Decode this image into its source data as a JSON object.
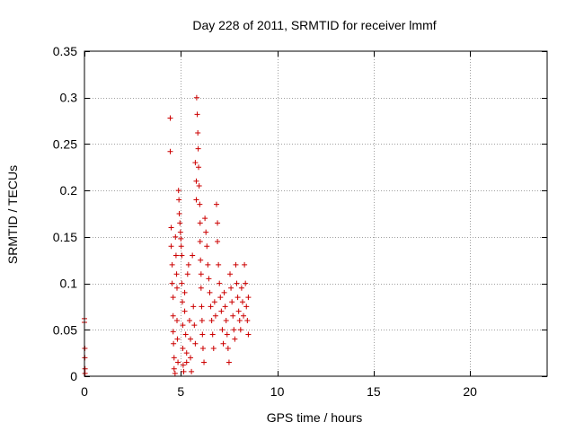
{
  "colors": {
    "series": "#cc0000",
    "grid": "#a0a0a0",
    "axis": "#000000",
    "background": "#ffffff"
  },
  "chart_data": {
    "type": "scatter",
    "title": "Day 228 of 2011, SRMTID for receiver lmmf",
    "xlabel": "GPS time / hours",
    "ylabel": "SRMTID / TECUs",
    "xlim": [
      0,
      24
    ],
    "ylim": [
      0,
      0.35
    ],
    "xticks": [
      0,
      5,
      10,
      15,
      20
    ],
    "xtick_labels": [
      "0",
      "5",
      "10",
      "15",
      "20"
    ],
    "yticks": [
      0,
      0.05,
      0.1,
      0.15,
      0.2,
      0.25,
      0.3,
      0.35
    ],
    "ytick_labels": [
      "0",
      "0.05",
      "0.1",
      "0.15",
      "0.2",
      "0.25",
      "0.3",
      "0.35"
    ],
    "grid": true,
    "marker": "+",
    "series": [
      {
        "name": "SRMTID",
        "points": [
          [
            0.0,
            0.062
          ],
          [
            0.0,
            0.058
          ],
          [
            0.02,
            0.03
          ],
          [
            0.02,
            0.02
          ],
          [
            0.03,
            0.008
          ],
          [
            0.03,
            0.003
          ],
          [
            4.45,
            0.278
          ],
          [
            4.45,
            0.242
          ],
          [
            4.5,
            0.16
          ],
          [
            4.5,
            0.14
          ],
          [
            4.55,
            0.12
          ],
          [
            4.55,
            0.1
          ],
          [
            4.6,
            0.085
          ],
          [
            4.6,
            0.065
          ],
          [
            4.6,
            0.048
          ],
          [
            4.62,
            0.035
          ],
          [
            4.65,
            0.02
          ],
          [
            4.65,
            0.008
          ],
          [
            4.7,
            0.003
          ],
          [
            4.72,
            0.15
          ],
          [
            4.75,
            0.13
          ],
          [
            4.78,
            0.11
          ],
          [
            4.8,
            0.095
          ],
          [
            4.8,
            0.06
          ],
          [
            4.82,
            0.04
          ],
          [
            4.85,
            0.015
          ],
          [
            4.88,
            0.2
          ],
          [
            4.9,
            0.19
          ],
          [
            4.92,
            0.175
          ],
          [
            4.95,
            0.165
          ],
          [
            4.98,
            0.155
          ],
          [
            5.0,
            0.148
          ],
          [
            5.02,
            0.14
          ],
          [
            5.05,
            0.13
          ],
          [
            5.05,
            0.1
          ],
          [
            5.08,
            0.08
          ],
          [
            5.1,
            0.055
          ],
          [
            5.1,
            0.03
          ],
          [
            5.12,
            0.012
          ],
          [
            5.15,
            0.005
          ],
          [
            5.2,
            0.09
          ],
          [
            5.2,
            0.07
          ],
          [
            5.25,
            0.045
          ],
          [
            5.3,
            0.025
          ],
          [
            5.3,
            0.015
          ],
          [
            5.35,
            0.11
          ],
          [
            5.4,
            0.12
          ],
          [
            5.45,
            0.06
          ],
          [
            5.5,
            0.04
          ],
          [
            5.5,
            0.02
          ],
          [
            5.55,
            0.005
          ],
          [
            5.6,
            0.13
          ],
          [
            5.65,
            0.075
          ],
          [
            5.7,
            0.055
          ],
          [
            5.75,
            0.035
          ],
          [
            5.75,
            0.23
          ],
          [
            5.8,
            0.21
          ],
          [
            5.8,
            0.19
          ],
          [
            5.82,
            0.3
          ],
          [
            5.85,
            0.282
          ],
          [
            5.88,
            0.262
          ],
          [
            5.9,
            0.245
          ],
          [
            5.92,
            0.225
          ],
          [
            5.95,
            0.205
          ],
          [
            5.98,
            0.185
          ],
          [
            6.0,
            0.165
          ],
          [
            6.0,
            0.145
          ],
          [
            6.02,
            0.125
          ],
          [
            6.05,
            0.11
          ],
          [
            6.05,
            0.095
          ],
          [
            6.08,
            0.075
          ],
          [
            6.1,
            0.06
          ],
          [
            6.12,
            0.045
          ],
          [
            6.15,
            0.03
          ],
          [
            6.2,
            0.015
          ],
          [
            6.25,
            0.17
          ],
          [
            6.3,
            0.155
          ],
          [
            6.35,
            0.14
          ],
          [
            6.4,
            0.12
          ],
          [
            6.45,
            0.105
          ],
          [
            6.5,
            0.09
          ],
          [
            6.55,
            0.075
          ],
          [
            6.6,
            0.06
          ],
          [
            6.65,
            0.045
          ],
          [
            6.7,
            0.03
          ],
          [
            6.75,
            0.08
          ],
          [
            6.8,
            0.065
          ],
          [
            6.85,
            0.185
          ],
          [
            6.9,
            0.165
          ],
          [
            6.9,
            0.145
          ],
          [
            6.95,
            0.12
          ],
          [
            7.0,
            0.1
          ],
          [
            7.05,
            0.085
          ],
          [
            7.1,
            0.07
          ],
          [
            7.15,
            0.05
          ],
          [
            7.2,
            0.035
          ],
          [
            7.25,
            0.09
          ],
          [
            7.3,
            0.075
          ],
          [
            7.35,
            0.06
          ],
          [
            7.4,
            0.045
          ],
          [
            7.45,
            0.03
          ],
          [
            7.5,
            0.015
          ],
          [
            7.55,
            0.11
          ],
          [
            7.6,
            0.095
          ],
          [
            7.65,
            0.08
          ],
          [
            7.7,
            0.065
          ],
          [
            7.75,
            0.05
          ],
          [
            7.8,
            0.04
          ],
          [
            7.85,
            0.12
          ],
          [
            7.9,
            0.1
          ],
          [
            7.95,
            0.085
          ],
          [
            8.0,
            0.07
          ],
          [
            8.05,
            0.06
          ],
          [
            8.1,
            0.05
          ],
          [
            8.15,
            0.095
          ],
          [
            8.2,
            0.08
          ],
          [
            8.25,
            0.065
          ],
          [
            8.3,
            0.12
          ],
          [
            8.35,
            0.1
          ],
          [
            8.4,
            0.075
          ],
          [
            8.45,
            0.06
          ],
          [
            8.5,
            0.045
          ],
          [
            8.5,
            0.085
          ]
        ]
      }
    ]
  }
}
